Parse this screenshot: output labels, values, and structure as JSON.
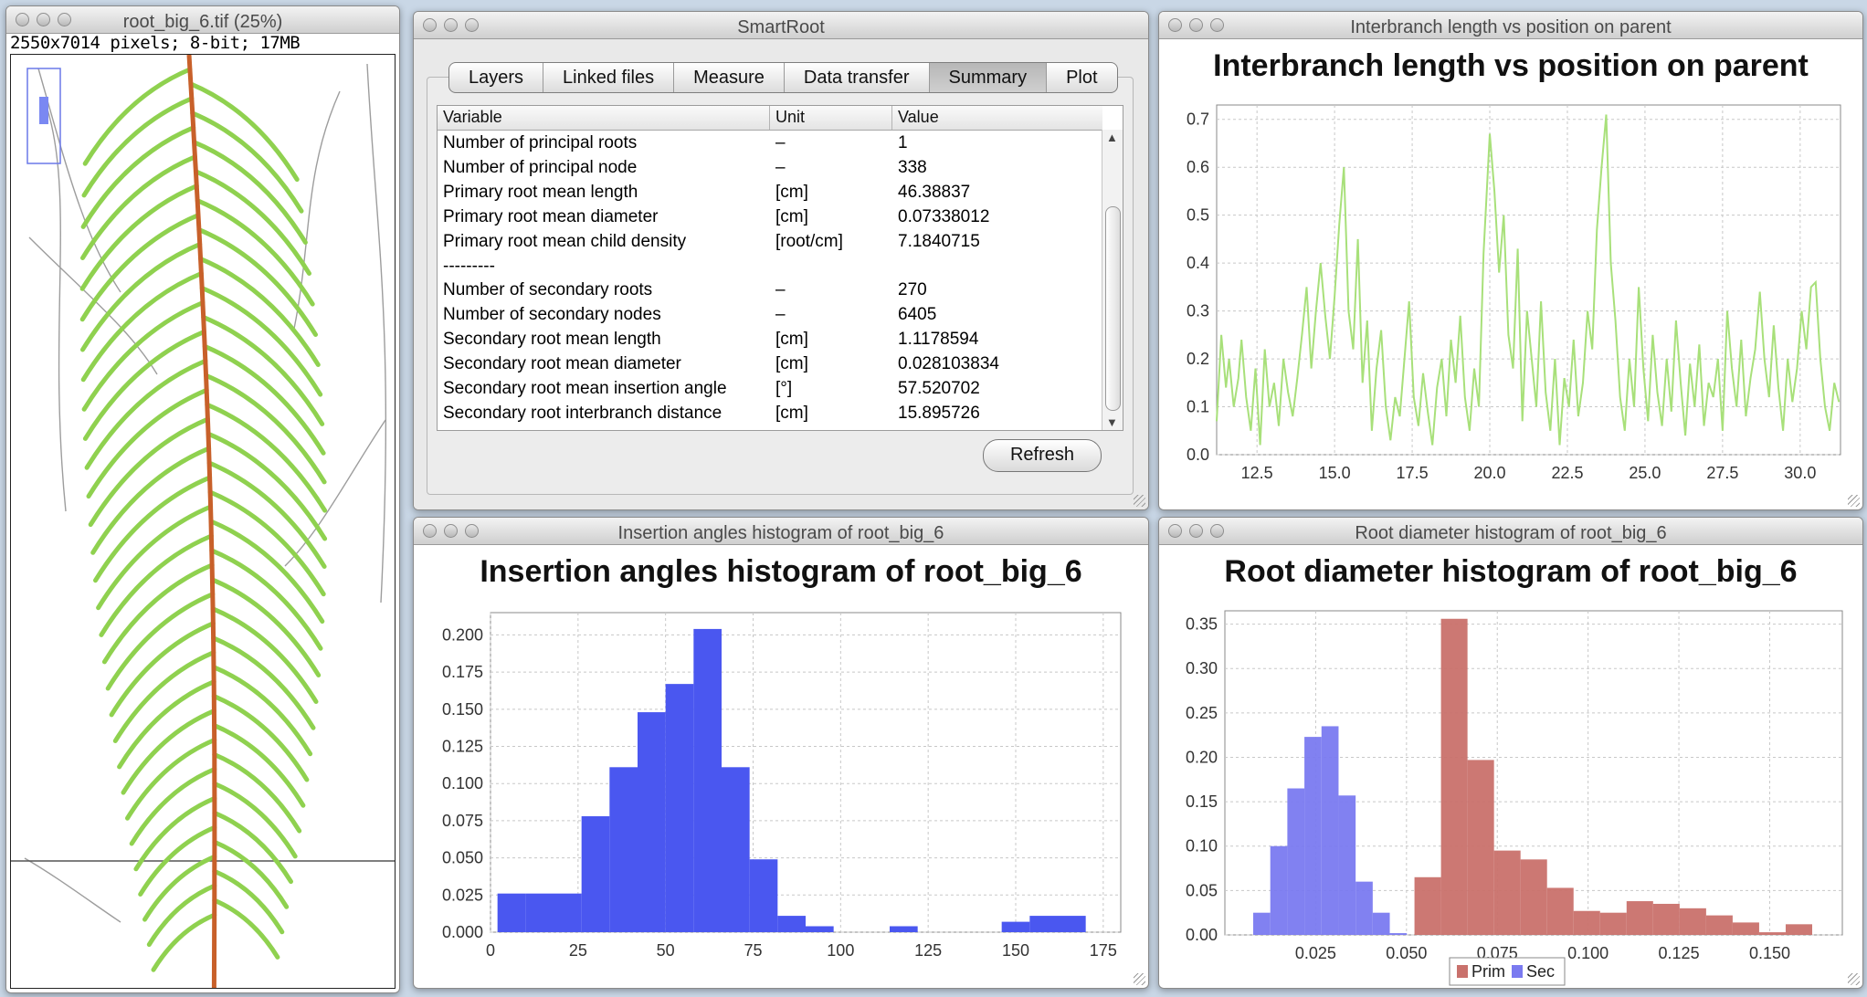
{
  "windows": {
    "image": {
      "title": "root_big_6.tif (25%)",
      "info": "2550x7014 pixels; 8-bit; 17MB"
    },
    "smartroot": {
      "title": "SmartRoot",
      "tabs": [
        {
          "label": "Layers",
          "active": false
        },
        {
          "label": "Linked files",
          "active": false
        },
        {
          "label": "Measure",
          "active": false
        },
        {
          "label": "Data transfer",
          "active": false
        },
        {
          "label": "Summary",
          "active": true
        },
        {
          "label": "Plot",
          "active": false
        }
      ],
      "table": {
        "headers": [
          "Variable",
          "Unit",
          "Value"
        ],
        "rows": [
          [
            "Number of principal roots",
            "–",
            "1"
          ],
          [
            "Number of principal node",
            "–",
            "338"
          ],
          [
            "Primary root mean length",
            "[cm]",
            "46.38837"
          ],
          [
            "Primary root mean diameter",
            "[cm]",
            "0.07338012"
          ],
          [
            "Primary root mean child density",
            "[root/cm]",
            "7.1840715"
          ],
          [
            "---------",
            "",
            ""
          ],
          [
            "Number of secondary roots",
            "–",
            "270"
          ],
          [
            "Number of secondary nodes",
            "–",
            "6405"
          ],
          [
            "Secondary root mean length",
            "[cm]",
            "1.1178594"
          ],
          [
            "Secondary root mean diameter",
            "[cm]",
            "0.028103834"
          ],
          [
            "Secondary root mean insertion angle",
            "[°]",
            "57.520702"
          ],
          [
            "Secondary root interbranch distance",
            "[cm]",
            "15.895726"
          ]
        ]
      },
      "refresh_label": "Refresh"
    },
    "interbranch": {
      "title": "Interbranch length vs position on parent"
    },
    "insertion": {
      "title": "Insertion angles histogram of root_big_6"
    },
    "diameter": {
      "title": "Root diameter histogram of root_big_6"
    }
  },
  "colors": {
    "line_green": "#a8e07a",
    "bar_blue": "#4a57f0",
    "prim_red": "#c9716c",
    "sec_blue": "#7a7af0",
    "root_green": "#8fd14f",
    "root_main": "#c8602a"
  },
  "chart_data": [
    {
      "type": "line",
      "title": "Interbranch length vs position on parent",
      "xlabel": "",
      "ylabel": "",
      "xlim": [
        11.2,
        31.3
      ],
      "ylim": [
        0,
        0.73
      ],
      "xticks": [
        "12.5",
        "15.0",
        "17.5",
        "20.0",
        "22.5",
        "25.0",
        "27.5",
        "30.0"
      ],
      "yticks": [
        "0.0",
        "0.1",
        "0.2",
        "0.3",
        "0.4",
        "0.5",
        "0.6",
        "0.7"
      ],
      "grid": true,
      "series": [
        {
          "x": [
            11.2,
            11.35,
            11.5,
            11.6,
            11.75,
            11.9,
            12.0,
            12.15,
            12.3,
            12.45,
            12.6,
            12.75,
            12.9,
            13.05,
            13.2,
            13.35,
            13.5,
            13.65,
            13.8,
            13.95,
            14.1,
            14.25,
            14.4,
            14.55,
            14.7,
            14.85,
            15.0,
            15.15,
            15.3,
            15.45,
            15.6,
            15.75,
            15.9,
            16.05,
            16.2,
            16.35,
            16.5,
            16.65,
            16.8,
            16.95,
            17.1,
            17.25,
            17.4,
            17.55,
            17.7,
            17.85,
            18.0,
            18.15,
            18.3,
            18.45,
            18.6,
            18.75,
            18.9,
            19.05,
            19.2,
            19.35,
            19.5,
            19.65,
            19.8,
            20.0,
            20.15,
            20.3,
            20.45,
            20.6,
            20.75,
            20.9,
            21.05,
            21.2,
            21.35,
            21.5,
            21.65,
            21.8,
            21.95,
            22.1,
            22.25,
            22.4,
            22.55,
            22.7,
            22.85,
            23.0,
            23.15,
            23.3,
            23.45,
            23.6,
            23.75,
            23.9,
            24.05,
            24.2,
            24.35,
            24.5,
            24.65,
            24.8,
            24.95,
            25.1,
            25.25,
            25.4,
            25.55,
            25.7,
            25.85,
            26.0,
            26.15,
            26.3,
            26.45,
            26.6,
            26.75,
            26.9,
            27.05,
            27.2,
            27.35,
            27.5,
            27.65,
            27.8,
            27.95,
            28.1,
            28.25,
            28.4,
            28.55,
            28.7,
            28.85,
            29.0,
            29.15,
            29.3,
            29.45,
            29.6,
            29.75,
            29.9,
            30.05,
            30.2,
            30.35,
            30.5,
            30.65,
            30.8,
            30.95,
            31.1,
            31.25
          ],
          "y": [
            0.07,
            0.25,
            0.14,
            0.2,
            0.1,
            0.16,
            0.24,
            0.12,
            0.05,
            0.18,
            0.02,
            0.22,
            0.1,
            0.15,
            0.06,
            0.2,
            0.13,
            0.08,
            0.16,
            0.25,
            0.35,
            0.18,
            0.3,
            0.4,
            0.29,
            0.2,
            0.33,
            0.48,
            0.6,
            0.3,
            0.22,
            0.45,
            0.15,
            0.28,
            0.05,
            0.18,
            0.26,
            0.1,
            0.03,
            0.12,
            0.08,
            0.2,
            0.32,
            0.12,
            0.06,
            0.17,
            0.09,
            0.02,
            0.14,
            0.2,
            0.08,
            0.24,
            0.15,
            0.29,
            0.12,
            0.05,
            0.18,
            0.1,
            0.42,
            0.67,
            0.55,
            0.38,
            0.5,
            0.25,
            0.18,
            0.43,
            0.07,
            0.3,
            0.2,
            0.1,
            0.32,
            0.13,
            0.05,
            0.2,
            0.02,
            0.16,
            0.1,
            0.24,
            0.08,
            0.15,
            0.3,
            0.22,
            0.47,
            0.6,
            0.71,
            0.4,
            0.28,
            0.12,
            0.05,
            0.2,
            0.1,
            0.35,
            0.18,
            0.07,
            0.25,
            0.13,
            0.06,
            0.2,
            0.09,
            0.28,
            0.15,
            0.04,
            0.19,
            0.1,
            0.23,
            0.06,
            0.15,
            0.12,
            0.2,
            0.05,
            0.3,
            0.18,
            0.1,
            0.24,
            0.08,
            0.16,
            0.22,
            0.34,
            0.2,
            0.12,
            0.27,
            0.14,
            0.05,
            0.2,
            0.11,
            0.18,
            0.3,
            0.22,
            0.35,
            0.36,
            0.2,
            0.1,
            0.05,
            0.15,
            0.11
          ]
        }
      ]
    },
    {
      "type": "bar",
      "title": "Insertion angles histogram of root_big_6",
      "xlabel": "",
      "ylabel": "",
      "xlim": [
        0,
        180
      ],
      "ylim": [
        0,
        0.215
      ],
      "xticks": [
        "0",
        "25",
        "50",
        "75",
        "100",
        "125",
        "150",
        "175"
      ],
      "yticks": [
        "0.000",
        "0.025",
        "0.050",
        "0.075",
        "0.100",
        "0.125",
        "0.150",
        "0.175",
        "0.200"
      ],
      "grid": true,
      "bin_edges": [
        2,
        10,
        18,
        26,
        34,
        42,
        50,
        58,
        66,
        74,
        82,
        90,
        98,
        106,
        114,
        122,
        130,
        138,
        146,
        154,
        162,
        170
      ],
      "values": [
        0.026,
        0.026,
        0.026,
        0.078,
        0.111,
        0.148,
        0.167,
        0.204,
        0.111,
        0.049,
        0.011,
        0.004,
        0,
        0,
        0.004,
        0,
        0,
        0,
        0.007,
        0.011,
        0.011
      ]
    },
    {
      "type": "bar",
      "title": "Root diameter histogram of root_big_6",
      "xlabel": "",
      "ylabel": "",
      "xlim": [
        0.0,
        0.17
      ],
      "ylim": [
        0,
        0.365
      ],
      "xticks": [
        "0.025",
        "0.050",
        "0.075",
        "0.100",
        "0.125",
        "0.150"
      ],
      "yticks": [
        "0.00",
        "0.05",
        "0.10",
        "0.15",
        "0.20",
        "0.25",
        "0.30",
        "0.35"
      ],
      "grid": true,
      "legend": "bottom-center",
      "series": [
        {
          "name": "Prim",
          "color": "#c9716c",
          "bin_edges": [
            0.0522,
            0.0595,
            0.0668,
            0.0741,
            0.0814,
            0.0887,
            0.096,
            0.1033,
            0.1106,
            0.1179,
            0.1252,
            0.1325,
            0.1398,
            0.1471,
            0.1544,
            0.1617
          ],
          "values": [
            0.065,
            0.356,
            0.197,
            0.095,
            0.085,
            0.053,
            0.027,
            0.025,
            0.038,
            0.035,
            0.03,
            0.022,
            0.014,
            0.003,
            0.012
          ]
        },
        {
          "name": "Sec",
          "color": "#7a7af0",
          "bin_edges": [
            0.0078,
            0.0125,
            0.0172,
            0.0219,
            0.0266,
            0.0313,
            0.036,
            0.0407,
            0.0454,
            0.0501
          ],
          "values": [
            0.025,
            0.1,
            0.165,
            0.223,
            0.235,
            0.157,
            0.06,
            0.025,
            0.002
          ]
        }
      ]
    }
  ]
}
